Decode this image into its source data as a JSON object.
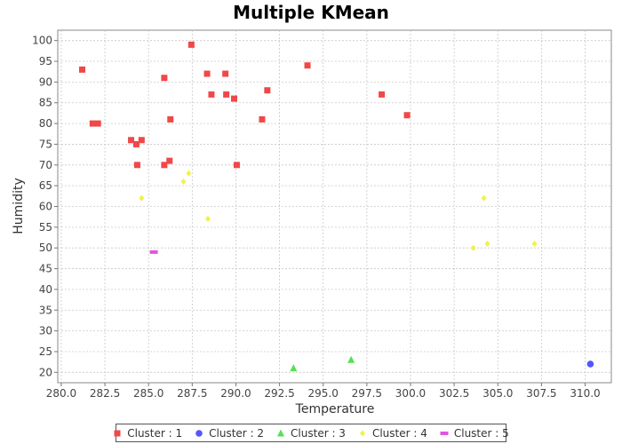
{
  "chart_data": {
    "type": "scatter",
    "title": "Multiple KMean",
    "xlabel": "Temperature",
    "ylabel": "Humidity",
    "xlim": [
      279.8,
      311.5
    ],
    "ylim": [
      17.5,
      102.5
    ],
    "xticks": [
      280.0,
      282.5,
      285.0,
      287.5,
      290.0,
      292.5,
      295.0,
      297.5,
      300.0,
      302.5,
      305.0,
      307.5,
      310.0
    ],
    "yticks": [
      20,
      25,
      30,
      35,
      40,
      45,
      50,
      55,
      60,
      65,
      70,
      75,
      80,
      85,
      90,
      95,
      100
    ],
    "grid": true,
    "legend_position": "bottom",
    "series": [
      {
        "name": "Cluster : 1",
        "color": "#f04848",
        "marker": "square",
        "points": [
          [
            281.2,
            93
          ],
          [
            281.8,
            80
          ],
          [
            282.1,
            80
          ],
          [
            284.0,
            76
          ],
          [
            284.3,
            75
          ],
          [
            284.6,
            76
          ],
          [
            284.35,
            70
          ],
          [
            285.9,
            91
          ],
          [
            285.9,
            70
          ],
          [
            286.2,
            71
          ],
          [
            286.25,
            81
          ],
          [
            287.45,
            99
          ],
          [
            288.35,
            92
          ],
          [
            288.6,
            87
          ],
          [
            289.4,
            92
          ],
          [
            289.45,
            87
          ],
          [
            289.9,
            86
          ],
          [
            290.05,
            70
          ],
          [
            291.5,
            81
          ],
          [
            291.8,
            88
          ],
          [
            294.1,
            94
          ],
          [
            298.35,
            87
          ],
          [
            299.8,
            82
          ]
        ]
      },
      {
        "name": "Cluster : 2",
        "color": "#5555ff",
        "marker": "circle",
        "points": [
          [
            310.3,
            22
          ]
        ]
      },
      {
        "name": "Cluster : 3",
        "color": "#55e055",
        "marker": "triangle",
        "points": [
          [
            293.3,
            21
          ],
          [
            296.6,
            23
          ]
        ]
      },
      {
        "name": "Cluster : 4",
        "color": "#f2f244",
        "marker": "diamond",
        "points": [
          [
            284.6,
            62
          ],
          [
            287.0,
            66
          ],
          [
            287.3,
            68
          ],
          [
            288.4,
            57
          ],
          [
            303.6,
            50
          ],
          [
            304.2,
            62
          ],
          [
            304.4,
            51
          ],
          [
            307.1,
            51
          ]
        ]
      },
      {
        "name": "Cluster : 5",
        "color": "#e055e0",
        "marker": "bar",
        "points": [
          [
            285.3,
            49
          ]
        ]
      }
    ]
  }
}
